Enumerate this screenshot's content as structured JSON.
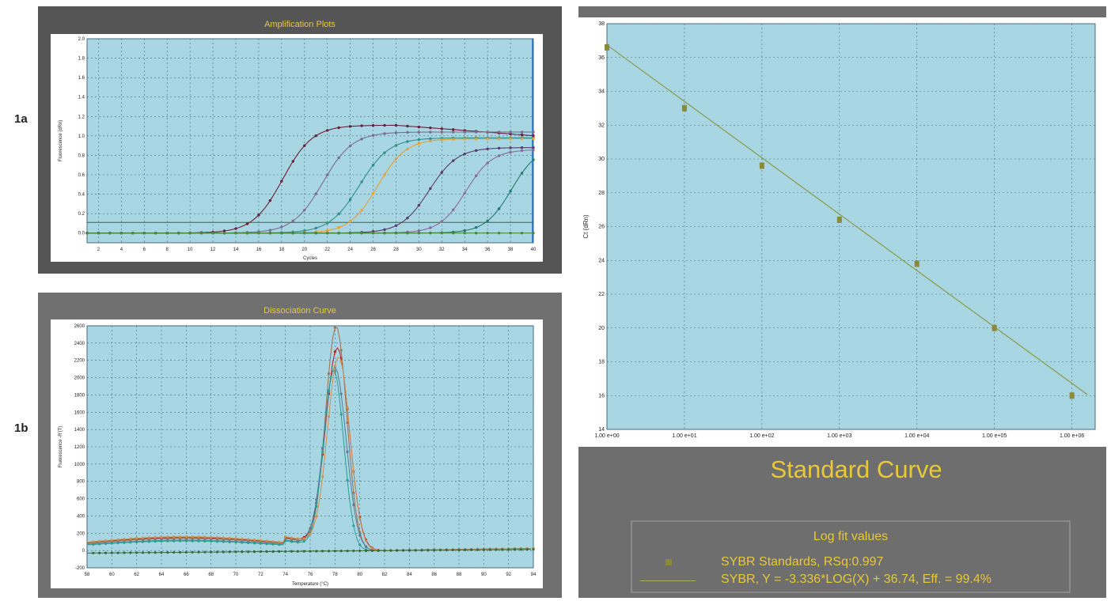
{
  "figure_labels": {
    "a": "1a",
    "b": "1b"
  },
  "chart_data": [
    {
      "type": "line",
      "title": "Amplification Plots",
      "xlabel": "Cycles",
      "ylabel": "Fluorescence (dRn)",
      "xlim": [
        1,
        40
      ],
      "ylim": [
        -0.1,
        2.0
      ],
      "x_ticks": [
        "2",
        "4",
        "6",
        "8",
        "10",
        "12",
        "14",
        "16",
        "18",
        "20",
        "22",
        "24",
        "26",
        "28",
        "30",
        "32",
        "34",
        "36",
        "38",
        "40"
      ],
      "y_ticks": [
        "0.0",
        "0.2",
        "0.4",
        "0.6",
        "0.8",
        "1.0",
        "1.2",
        "1.4",
        "1.6",
        "1.8",
        "2.0"
      ],
      "threshold": 0.11,
      "grid": true,
      "series": [
        {
          "color": "#6a1f3a",
          "values": [
            {
              "ct": 17.8,
              "plateau": 1.11,
              "slope": 1.7
            }
          ]
        },
        {
          "color": "#7a6f8a",
          "values": [
            {
              "ct": 21.3,
              "plateau": 1.04,
              "slope": 1.7
            }
          ]
        },
        {
          "color": "#2e8f8a",
          "values": [
            {
              "ct": 24.5,
              "plateau": 0.98,
              "slope": 1.7
            }
          ]
        },
        {
          "color": "#e8a030",
          "values": [
            {
              "ct": 26.1,
              "plateau": 0.97,
              "slope": 1.6
            }
          ]
        },
        {
          "color": "#5a3a6a",
          "values": [
            {
              "ct": 30.6,
              "plateau": 0.88,
              "slope": 1.6
            }
          ]
        },
        {
          "color": "#8a6a9a",
          "values": [
            {
              "ct": 33.8,
              "plateau": 0.86,
              "slope": 1.5
            }
          ]
        },
        {
          "color": "#1f7a6a",
          "values": [
            {
              "ct": 37.8,
              "plateau": 0.9,
              "slope": 1.5
            }
          ]
        },
        {
          "color": "#4a8a3a",
          "values": [
            {
              "ct": 99,
              "plateau": 0.0,
              "slope": 1.5
            }
          ]
        }
      ]
    },
    {
      "type": "line",
      "title": "Dissociation Curve",
      "xlabel": "Temperature (°C)",
      "ylabel": "Fluorescence -R'(T)",
      "xlim": [
        58,
        94
      ],
      "ylim": [
        -200,
        2600
      ],
      "x_ticks": [
        "58",
        "60",
        "62",
        "64",
        "66",
        "68",
        "70",
        "72",
        "74",
        "76",
        "78",
        "80",
        "82",
        "84",
        "86",
        "88",
        "90",
        "92",
        "94"
      ],
      "y_ticks": [
        "-200",
        "0",
        "200",
        "400",
        "600",
        "800",
        "1000",
        "1200",
        "1400",
        "1600",
        "1800",
        "2000",
        "2200",
        "2400",
        "2600"
      ],
      "grid": true,
      "series": [
        {
          "color": "#b02020",
          "values": [
            {
              "peak_x": 78.2,
              "peak_y": 2300,
              "width": 0.95,
              "baseline": 150
            }
          ]
        },
        {
          "color": "#a07050",
          "values": [
            {
              "peak_x": 78.1,
              "peak_y": 2550,
              "width": 0.85,
              "baseline": 140
            }
          ]
        },
        {
          "color": "#5a7a9a",
          "values": [
            {
              "peak_x": 78.0,
              "peak_y": 2080,
              "width": 0.9,
              "baseline": 120
            }
          ]
        },
        {
          "color": "#2aa090",
          "values": [
            {
              "peak_x": 77.9,
              "peak_y": 2050,
              "width": 0.8,
              "baseline": 110
            }
          ]
        },
        {
          "color": "#d09050",
          "values": [
            {
              "peak_x": 78.3,
              "peak_y": 2200,
              "width": 0.9,
              "baseline": 160
            }
          ]
        },
        {
          "color": "#3a6a3a",
          "values": [
            {
              "peak_x": 78,
              "peak_y": 0,
              "width": 1,
              "baseline": 0
            }
          ]
        }
      ]
    },
    {
      "type": "scatter",
      "title": "Standard Curve",
      "xlabel": "",
      "ylabel": "Ct (dRn)",
      "log_x": true,
      "xlim_log10": [
        0,
        6.3
      ],
      "ylim": [
        14,
        38
      ],
      "x_ticks": [
        "1.00 e+00",
        "1.00 e+01",
        "1.00 e+02",
        "1.00 e+03",
        "1.00 e+04",
        "1.00 e+05",
        "1.00 e+06"
      ],
      "y_ticks": [
        "14",
        "16",
        "18",
        "20",
        "22",
        "24",
        "26",
        "28",
        "30",
        "32",
        "34",
        "36",
        "38"
      ],
      "grid": true,
      "points": [
        {
          "log10_x": 0.0,
          "y": 36.6
        },
        {
          "log10_x": 1.0,
          "y": 33.0
        },
        {
          "log10_x": 2.0,
          "y": 29.6
        },
        {
          "log10_x": 3.0,
          "y": 26.4
        },
        {
          "log10_x": 4.0,
          "y": 23.8
        },
        {
          "log10_x": 5.0,
          "y": 20.0
        },
        {
          "log10_x": 6.0,
          "y": 16.0
        }
      ],
      "fit": {
        "slope": -3.336,
        "intercept": 36.74
      },
      "legend": {
        "title": "Log fit values",
        "marker_label": "SYBR Standards, RSq:0.997",
        "line_label": "SYBR, Y = -3.336*LOG(X) + 36.74, Eff. = 99.4%"
      }
    }
  ]
}
